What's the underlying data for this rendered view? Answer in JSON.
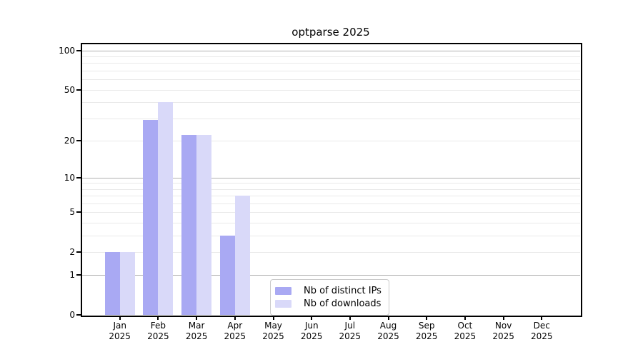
{
  "title": "optparse 2025",
  "chart_data": {
    "type": "bar",
    "title": "optparse 2025",
    "categories": [
      "Jan",
      "Feb",
      "Mar",
      "Apr",
      "May",
      "Jun",
      "Jul",
      "Aug",
      "Sep",
      "Oct",
      "Nov",
      "Dec"
    ],
    "x_year": "2025",
    "series": [
      {
        "name": "Nb of distinct IPs",
        "color": "#a9a9f3",
        "values": [
          2,
          29,
          22,
          3,
          0,
          0,
          0,
          0,
          0,
          0,
          0,
          0
        ]
      },
      {
        "name": "Nb of downloads",
        "color": "#d9d9f9",
        "values": [
          2,
          40,
          22,
          7,
          0,
          0,
          0,
          0,
          0,
          0,
          0,
          0
        ]
      }
    ],
    "y_ticks": [
      0,
      1,
      2,
      5,
      10,
      20,
      50,
      100
    ],
    "y_major_gridlines": [
      1,
      10,
      100
    ],
    "y_minor_gridlines": [
      2,
      3,
      4,
      5,
      6,
      7,
      8,
      9,
      20,
      30,
      40,
      50,
      60,
      70,
      80,
      90
    ],
    "scale": "log1p",
    "ylim": [
      0,
      113
    ],
    "xlabel": "",
    "ylabel": "",
    "grid": "on",
    "legend_position": "bottom-center"
  },
  "colors": {
    "bar_distinct_ips": "#a9a9f3",
    "bar_downloads": "#d9d9f9",
    "gridline_major": "#b0b0b0",
    "gridline_minor": "#e9e9e9",
    "axis_spine": "#000000",
    "legend_border": "#c9c9c9",
    "background": "#ffffff"
  }
}
